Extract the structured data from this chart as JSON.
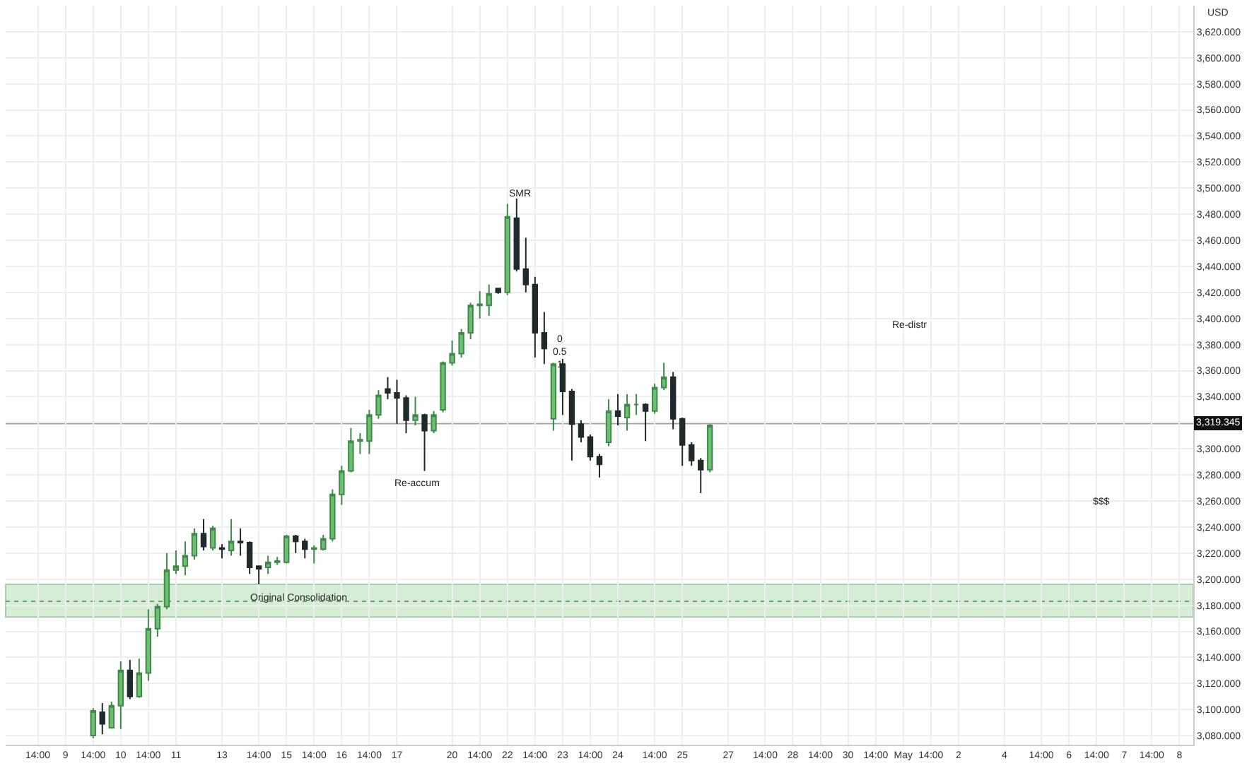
{
  "chart_data": {
    "type": "candlestick",
    "ylabel": "USD",
    "categories": [
      null,
      null,
      null,
      "14:00",
      null,
      null,
      "9",
      null,
      null,
      "14:00",
      null,
      null,
      "10",
      null,
      null,
      "14:00",
      null,
      null,
      "11",
      null,
      null,
      null,
      null,
      "13",
      null,
      null,
      null,
      "14:00",
      null,
      null,
      "15",
      null,
      null,
      "14:00",
      null,
      null,
      "16",
      null,
      null,
      "14:00",
      null,
      null,
      "17",
      null,
      null,
      null,
      null,
      null,
      "20",
      null,
      null,
      "14:00",
      null,
      null,
      "22",
      null,
      null,
      "14:00",
      null,
      null,
      "23",
      null,
      null,
      "14:00",
      null,
      null,
      "24",
      null,
      null,
      null,
      "14:00",
      null,
      null,
      "25",
      null,
      null,
      null,
      null,
      "27",
      null,
      null,
      null,
      "14:00",
      null,
      null,
      "28",
      null,
      null,
      "14:00",
      null,
      null,
      "30",
      null,
      null,
      "14:00",
      null,
      null,
      "May",
      null,
      null,
      "14:00",
      null,
      null,
      "2",
      null,
      null,
      null,
      null,
      "4",
      null,
      null,
      null,
      "14:00",
      null,
      null,
      "6",
      null,
      null,
      "14:00",
      null,
      null,
      "7",
      null,
      null,
      "14:00",
      null,
      null,
      "8",
      null
    ],
    "ohlc": [
      null,
      null,
      null,
      null,
      null,
      null,
      null,
      null,
      null,
      [
        3080,
        3101,
        3078,
        3099
      ],
      [
        3098,
        3105,
        3081,
        3089
      ],
      [
        3086,
        3106,
        3086,
        3103
      ],
      [
        3103,
        3137,
        3085,
        3130
      ],
      [
        3130,
        3138,
        3108,
        3110
      ],
      [
        3110,
        3139,
        3109,
        3128
      ],
      [
        3128,
        3177,
        3122,
        3162
      ],
      [
        3162,
        3181,
        3156,
        3179
      ],
      [
        3179,
        3220,
        3177,
        3207
      ],
      [
        3207,
        3222,
        3204,
        3210
      ],
      [
        3210,
        3229,
        3203,
        3218
      ],
      [
        3218,
        3239,
        3215,
        3235
      ],
      [
        3235,
        3246,
        3222,
        3225
      ],
      [
        3224,
        3241,
        3222,
        3239
      ],
      [
        3224,
        3227,
        3216,
        3223
      ],
      [
        3222,
        3246,
        3218,
        3229
      ],
      [
        3229,
        3239,
        3218,
        3228
      ],
      [
        3228,
        3229,
        3204,
        3209
      ],
      [
        3210,
        3210,
        3196,
        3208
      ],
      [
        3209,
        3218,
        3204,
        3213
      ],
      [
        3213,
        3217,
        3211,
        3214
      ],
      [
        3213,
        3234,
        3212,
        3233
      ],
      [
        3233,
        3234,
        3220,
        3229
      ],
      [
        3229,
        3231,
        3216,
        3223
      ],
      [
        3223,
        3226,
        3212,
        3224
      ],
      [
        3223,
        3234,
        3222,
        3231
      ],
      [
        3231,
        3269,
        3229,
        3265
      ],
      [
        3265,
        3287,
        3257,
        3283
      ],
      [
        3283,
        3316,
        3282,
        3306
      ],
      [
        3306,
        3312,
        3296,
        3307
      ],
      [
        3306,
        3330,
        3296,
        3326
      ],
      [
        3326,
        3345,
        3323,
        3341
      ],
      [
        3346,
        3355,
        3338,
        3343
      ],
      [
        3343,
        3353,
        3319,
        3339
      ],
      [
        3339,
        3341,
        3312,
        3322
      ],
      [
        3322,
        3340,
        3318,
        3326
      ],
      [
        3326,
        3327,
        3283,
        3314
      ],
      [
        3314,
        3329,
        3312,
        3326
      ],
      [
        3330,
        3367,
        3328,
        3366
      ],
      [
        3366,
        3383,
        3364,
        3373
      ],
      [
        3373,
        3392,
        3370,
        3389
      ],
      [
        3389,
        3412,
        3384,
        3410
      ],
      [
        3410,
        3421,
        3400,
        3411
      ],
      [
        3410,
        3426,
        3402,
        3419
      ],
      [
        3423,
        3423,
        3419,
        3420
      ],
      [
        3420,
        3488,
        3418,
        3478
      ],
      [
        3477,
        3492,
        3436,
        3438
      ],
      [
        3438,
        3462,
        3420,
        3426
      ],
      [
        3426,
        3432,
        3370,
        3389
      ],
      [
        3389,
        3405,
        3365,
        3377
      ],
      [
        3323,
        3366,
        3314,
        3365
      ],
      [
        3365,
        3369,
        3326,
        3344
      ],
      [
        3344,
        3346,
        3291,
        3319
      ],
      [
        3319,
        3322,
        3305,
        3309
      ],
      [
        3309,
        3311,
        3291,
        3294
      ],
      [
        3294,
        3296,
        3278,
        3288
      ],
      [
        3305,
        3338,
        3302,
        3329
      ],
      [
        3329,
        3342,
        3318,
        3325
      ],
      [
        3324,
        3342,
        3314,
        3334
      ],
      [
        3334,
        3342,
        3326,
        3334
      ],
      [
        3334,
        3335,
        3306,
        3329
      ],
      [
        3329,
        3350,
        3327,
        3347
      ],
      [
        3347,
        3366,
        3345,
        3355
      ],
      [
        3355,
        3359,
        3315,
        3323
      ],
      [
        3323,
        3324,
        3287,
        3303
      ],
      [
        3303,
        3305,
        3287,
        3291
      ],
      [
        3291,
        3293,
        3266,
        3284
      ],
      [
        3284,
        3319,
        3282,
        3318
      ],
      null,
      null,
      null,
      null,
      null,
      null,
      null,
      null,
      null,
      null,
      null,
      null,
      null,
      null,
      null,
      null,
      null,
      null,
      null,
      null,
      null,
      null,
      null,
      null,
      null,
      null,
      null,
      null,
      null,
      null,
      null,
      null,
      null,
      null,
      null,
      null,
      null,
      null,
      null,
      null,
      null,
      null,
      null,
      null,
      null,
      null,
      null,
      null,
      null,
      null,
      null,
      null
    ],
    "ylim": [
      3073,
      3640
    ],
    "yticks": [
      {
        "value": 3080,
        "label": "3,080.000"
      },
      {
        "value": 3100,
        "label": "3,100.000"
      },
      {
        "value": 3120,
        "label": "3,120.000"
      },
      {
        "value": 3140,
        "label": "3,140.000"
      },
      {
        "value": 3160,
        "label": "3,160.000"
      },
      {
        "value": 3180,
        "label": "3,180.000"
      },
      {
        "value": 3200,
        "label": "3,200.000"
      },
      {
        "value": 3220,
        "label": "3,220.000"
      },
      {
        "value": 3240,
        "label": "3,240.000"
      },
      {
        "value": 3260,
        "label": "3,260.000"
      },
      {
        "value": 3280,
        "label": "3,280.000"
      },
      {
        "value": 3300,
        "label": "3,300.000"
      },
      {
        "value": 3320,
        "label": null
      },
      {
        "value": 3340,
        "label": "3,340.000"
      },
      {
        "value": 3360,
        "label": "3,360.000"
      },
      {
        "value": 3380,
        "label": "3,380.000"
      },
      {
        "value": 3400,
        "label": "3,400.000"
      },
      {
        "value": 3420,
        "label": "3,420.000"
      },
      {
        "value": 3440,
        "label": "3,440.000"
      },
      {
        "value": 3460,
        "label": "3,460.000"
      },
      {
        "value": 3480,
        "label": "3,480.000"
      },
      {
        "value": 3500,
        "label": "3,500.000"
      },
      {
        "value": 3520,
        "label": "3,520.000"
      },
      {
        "value": 3540,
        "label": "3,540.000"
      },
      {
        "value": 3560,
        "label": "3,560.000"
      },
      {
        "value": 3580,
        "label": "3,580.000"
      },
      {
        "value": 3600,
        "label": "3,600.000"
      },
      {
        "value": 3620,
        "label": "3,620.000"
      }
    ],
    "grid": true,
    "bands": [
      {
        "axis": "y",
        "from": 3171,
        "to": 3196,
        "color": "#d4edd4"
      }
    ],
    "ref_lines": [
      {
        "axis": "y",
        "value": 3319.345,
        "label": "3,319.345",
        "color": "#a0a0a0"
      },
      {
        "axis": "y",
        "value": 3183,
        "color": "#6aa56a",
        "line_style": "dotted"
      }
    ],
    "annotations": [
      "SMR",
      "Re-accum",
      {
        "text": "Original Consolidation",
        "y": 3186
      },
      "Re-distr",
      "$$$",
      "0",
      "0.5",
      "1"
    ]
  }
}
